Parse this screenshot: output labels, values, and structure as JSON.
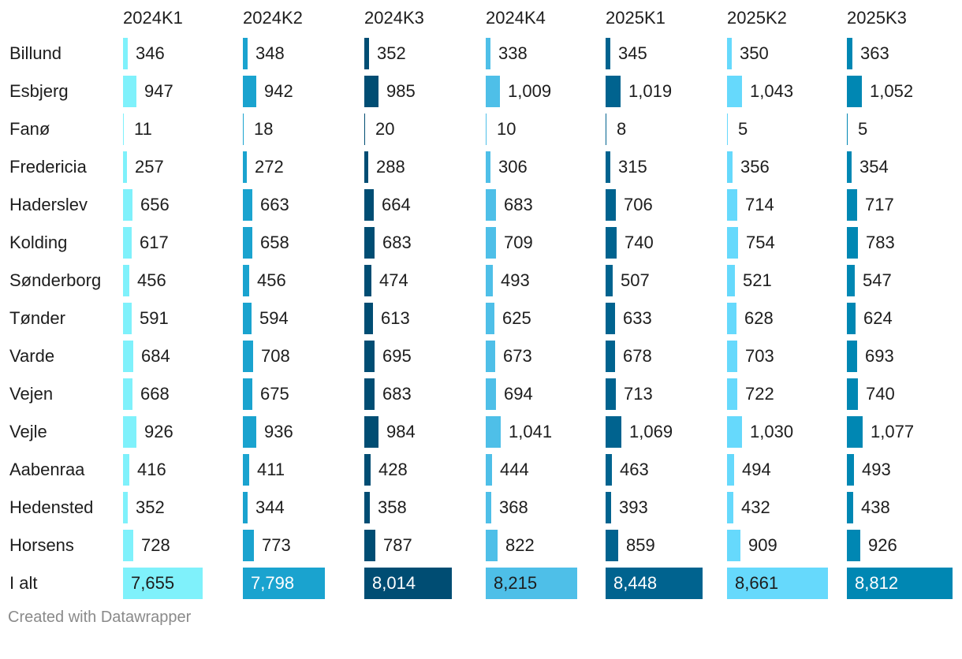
{
  "chart_data": {
    "type": "table",
    "title": "",
    "columns": [
      "2024K1",
      "2024K2",
      "2024K3",
      "2024K4",
      "2025K1",
      "2025K2",
      "2025K3"
    ],
    "column_colors": [
      "#7ff1fb",
      "#1aa3cf",
      "#004d73",
      "#4ebfe8",
      "#00638f",
      "#66d9fc",
      "#0087b3"
    ],
    "rows": [
      {
        "label": "Billund",
        "values": [
          346,
          348,
          352,
          338,
          345,
          350,
          363
        ],
        "display": [
          "346",
          "348",
          "352",
          "338",
          "345",
          "350",
          "363"
        ]
      },
      {
        "label": "Esbjerg",
        "values": [
          947,
          942,
          985,
          1009,
          1019,
          1043,
          1052
        ],
        "display": [
          "947",
          "942",
          "985",
          "1,009",
          "1,019",
          "1,043",
          "1,052"
        ]
      },
      {
        "label": "Fanø",
        "values": [
          11,
          18,
          20,
          10,
          8,
          5,
          5
        ],
        "display": [
          "11",
          "18",
          "20",
          "10",
          "8",
          "5",
          "5"
        ]
      },
      {
        "label": "Fredericia",
        "values": [
          257,
          272,
          288,
          306,
          315,
          356,
          354
        ],
        "display": [
          "257",
          "272",
          "288",
          "306",
          "315",
          "356",
          "354"
        ]
      },
      {
        "label": "Haderslev",
        "values": [
          656,
          663,
          664,
          683,
          706,
          714,
          717
        ],
        "display": [
          "656",
          "663",
          "664",
          "683",
          "706",
          "714",
          "717"
        ]
      },
      {
        "label": "Kolding",
        "values": [
          617,
          658,
          683,
          709,
          740,
          754,
          783
        ],
        "display": [
          "617",
          "658",
          "683",
          "709",
          "740",
          "754",
          "783"
        ]
      },
      {
        "label": "Sønderborg",
        "values": [
          456,
          456,
          474,
          493,
          507,
          521,
          547
        ],
        "display": [
          "456",
          "456",
          "474",
          "493",
          "507",
          "521",
          "547"
        ]
      },
      {
        "label": "Tønder",
        "values": [
          591,
          594,
          613,
          625,
          633,
          628,
          624
        ],
        "display": [
          "591",
          "594",
          "613",
          "625",
          "633",
          "628",
          "624"
        ]
      },
      {
        "label": "Varde",
        "values": [
          684,
          708,
          695,
          673,
          678,
          703,
          693
        ],
        "display": [
          "684",
          "708",
          "695",
          "673",
          "678",
          "703",
          "693"
        ]
      },
      {
        "label": "Vejen",
        "values": [
          668,
          675,
          683,
          694,
          713,
          722,
          740
        ],
        "display": [
          "668",
          "675",
          "683",
          "694",
          "713",
          "722",
          "740"
        ]
      },
      {
        "label": "Vejle",
        "values": [
          926,
          936,
          984,
          1041,
          1069,
          1030,
          1077
        ],
        "display": [
          "926",
          "936",
          "984",
          "1,041",
          "1,069",
          "1,030",
          "1,077"
        ]
      },
      {
        "label": "Aabenraa",
        "values": [
          416,
          411,
          428,
          444,
          463,
          494,
          493
        ],
        "display": [
          "416",
          "411",
          "428",
          "444",
          "463",
          "494",
          "493"
        ]
      },
      {
        "label": "Hedensted",
        "values": [
          352,
          344,
          358,
          368,
          393,
          432,
          438
        ],
        "display": [
          "352",
          "344",
          "358",
          "368",
          "393",
          "432",
          "438"
        ]
      },
      {
        "label": "Horsens",
        "values": [
          728,
          773,
          787,
          822,
          859,
          909,
          926
        ],
        "display": [
          "728",
          "773",
          "787",
          "822",
          "859",
          "909",
          "926"
        ]
      }
    ],
    "total": {
      "label": "I alt",
      "values": [
        7655,
        7798,
        8014,
        8215,
        8448,
        8661,
        8812
      ],
      "display": [
        "7,655",
        "7,798",
        "8,014",
        "8,215",
        "8,448",
        "8,661",
        "8,812"
      ]
    },
    "max_value": 8812
  },
  "footer": {
    "credit": "Created with Datawrapper"
  }
}
